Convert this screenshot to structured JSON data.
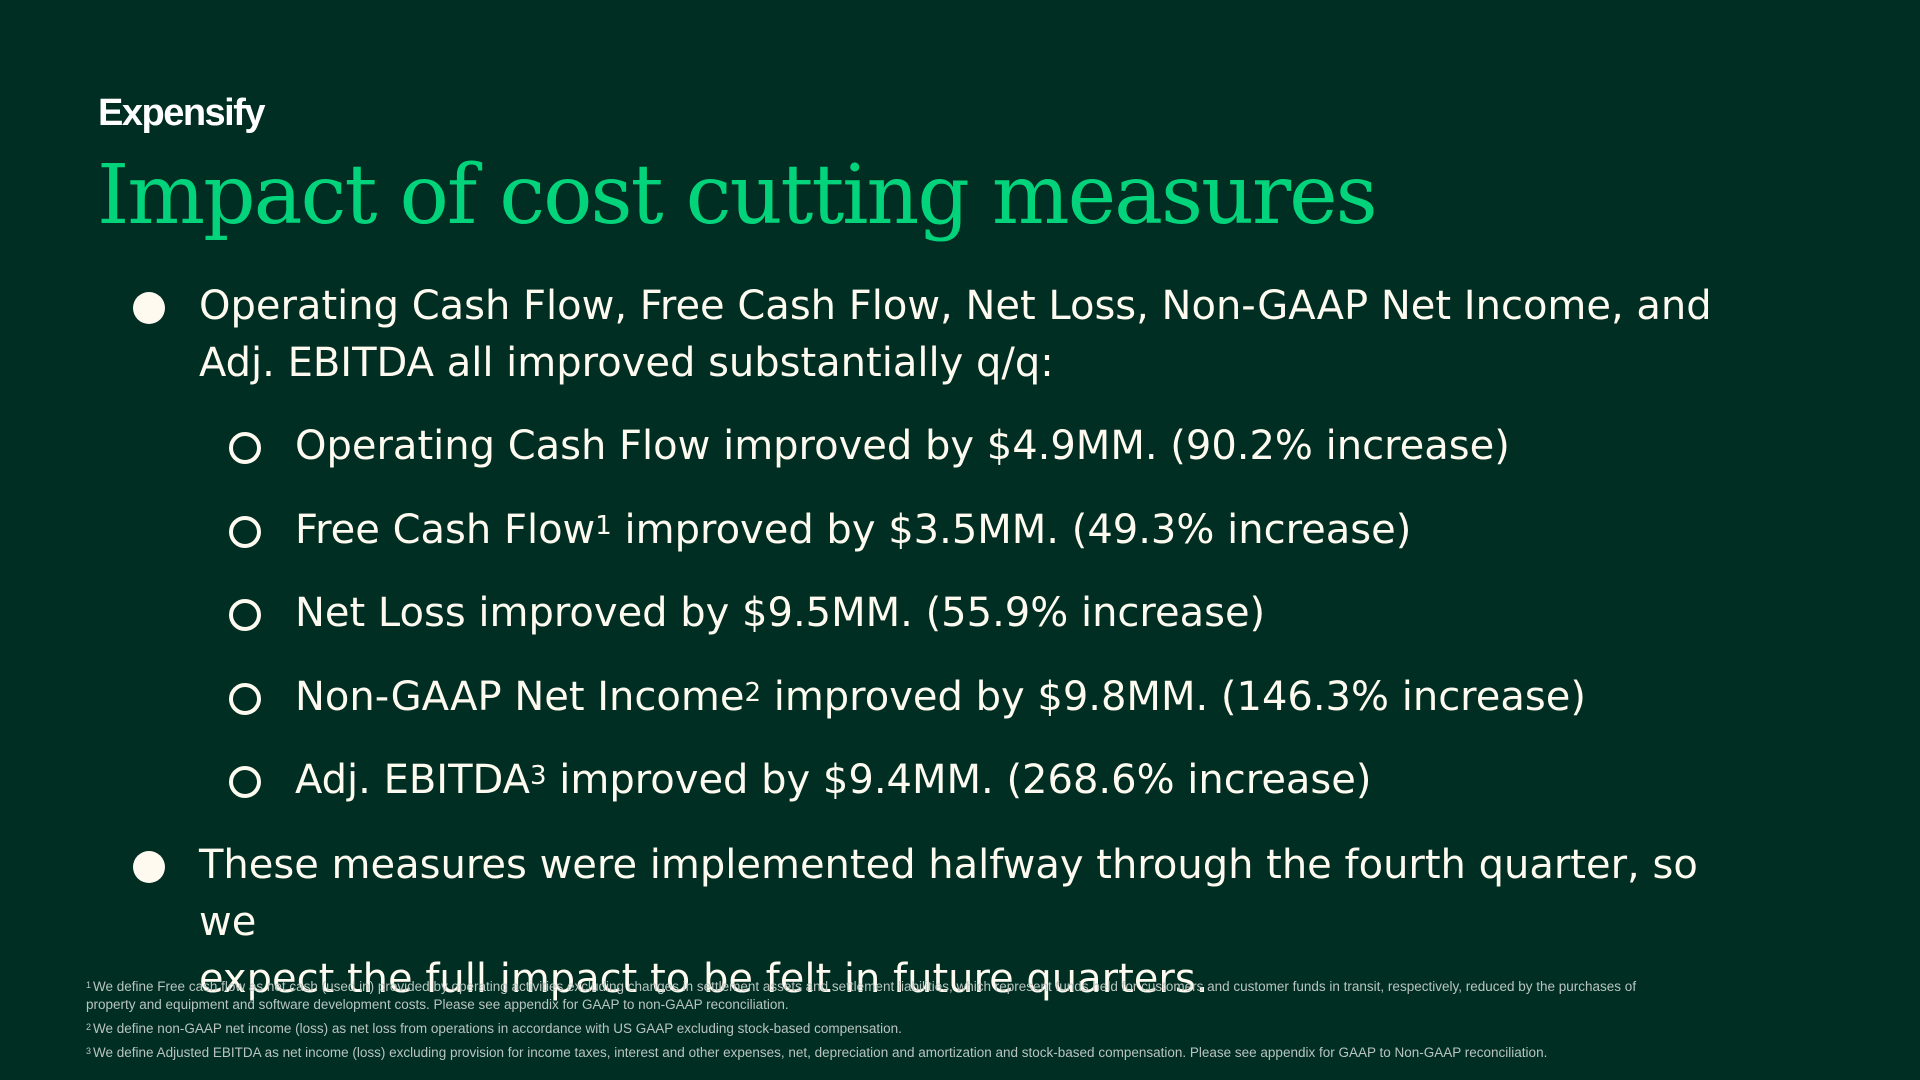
{
  "brand": {
    "logo_text": "Expensify"
  },
  "title": "Impact of cost cutting measures",
  "colors": {
    "background": "#002e22",
    "title": "#03d47c",
    "text": "#fffaf0",
    "footnote": "#b9c4bf"
  },
  "bullets": [
    {
      "line1": "Operating Cash Flow, Free Cash Flow, Net Loss, Non-GAAP Net Income, and",
      "line2": "Adj. EBITDA all improved substantially q/q:"
    },
    {
      "line1": "These measures were implemented halfway through the fourth quarter, so we",
      "line2": "expect the full impact to be felt in future quarters."
    }
  ],
  "sub_bullets": [
    {
      "pre": "Operating Cash Flow",
      "sup": "",
      "post": " improved by $4.9MM. (90.2% increase)"
    },
    {
      "pre": "Free Cash Flow",
      "sup": "1",
      "post": " improved by $3.5MM. (49.3% increase)"
    },
    {
      "pre": "Net Loss",
      "sup": "",
      "post": " improved by $9.5MM. (55.9% increase)"
    },
    {
      "pre": "Non-GAAP Net Income",
      "sup": "2",
      "post": " improved by $9.8MM. (146.3% increase)"
    },
    {
      "pre": "Adj. EBITDA",
      "sup": "3",
      "post": " improved by $9.4MM. (268.6% increase)"
    }
  ],
  "footnotes": [
    {
      "num": "1",
      "line1": "We define Free cash flow as net cash (used in) provided by operating activities excluding changes in settlement assets and settlement liabilities, which represent funds held for customers and customer funds in transit, respectively, reduced by the purchases of",
      "line2": "property and equipment and software development costs. Please see appendix for GAAP to non-GAAP reconciliation."
    },
    {
      "num": "2",
      "line1": "We define non-GAAP net income (loss) as net loss from operations in accordance with US GAAP excluding stock-based compensation.",
      "line2": ""
    },
    {
      "num": "3",
      "line1": "We define Adjusted EBITDA as net income (loss) excluding provision for income taxes, interest and other expenses, net, depreciation and amortization and stock-based compensation. Please see appendix for GAAP to Non-GAAP reconciliation.",
      "line2": ""
    }
  ]
}
